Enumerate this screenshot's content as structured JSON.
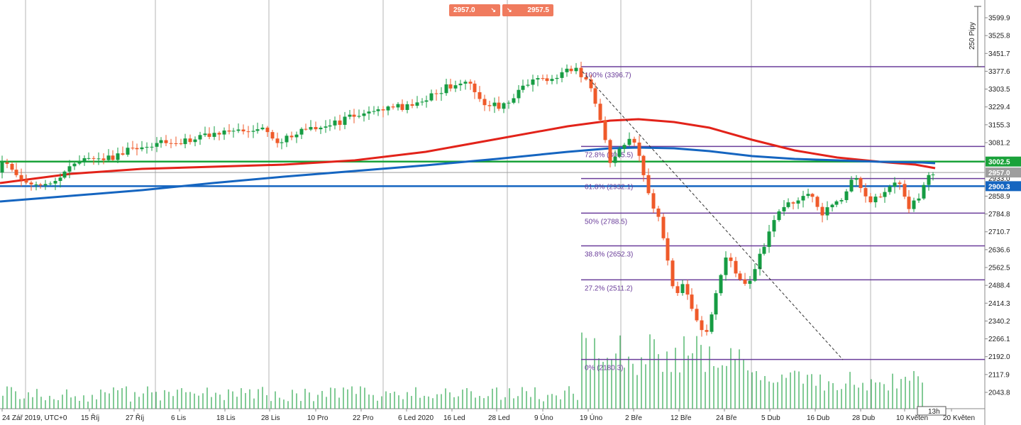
{
  "platform": {
    "bid_price": "2957.0",
    "ask_price": "2957.5",
    "bid_arrow": "↘",
    "ask_arrow": "↘",
    "timer": "13h",
    "range_label": "250 Pipy"
  },
  "colors": {
    "up": "#169c43",
    "down": "#ef5a2a",
    "ma_fast": "#e2231a",
    "ma_slow": "#1565c0",
    "fib": "#6a3d9a",
    "green_line": "#1aa23a",
    "blue_line": "#1565c0",
    "gray_line": "#9e9e9e",
    "volume": "#2fa84f"
  },
  "price_axis": {
    "ticks": [
      "3599.9",
      "3525.8",
      "3451.7",
      "3377.6",
      "3303.5",
      "3229.4",
      "3155.3",
      "3081.2",
      "2858.9",
      "2784.8",
      "2710.7",
      "2636.6",
      "2562.5",
      "2488.4",
      "2414.3",
      "2340.2",
      "2266.1",
      "2192.0",
      "2117.9",
      "2043.8"
    ],
    "tags": [
      {
        "label": "3002.5",
        "value": 3002.5,
        "color": "#1aa23a"
      },
      {
        "label": "2957.0",
        "value": 2957.0,
        "color": "#9e9e9e"
      },
      {
        "label": "2900.3",
        "value": 2900.3,
        "color": "#1565c0"
      }
    ],
    "hidden_tick": "2933.0"
  },
  "time_axis": {
    "labels": [
      "24 Zář 2019, UTC+0",
      "15 Říj",
      "27 Říj",
      "6 Lis",
      "18 Lis",
      "28 Lis",
      "10 Pro",
      "22 Pro",
      "6 Led 2020",
      "16 Led",
      "28 Led",
      "9 Úno",
      "19 Úno",
      "2 Bře",
      "12 Bře",
      "24 Bře",
      "5 Dub",
      "16 Dub",
      "28 Dub",
      "10 Květen",
      "20 Květen"
    ]
  },
  "horizontal_lines": [
    {
      "value": 3002.5,
      "color": "#1aa23a"
    },
    {
      "value": 2957.0,
      "color": "#9e9e9e"
    },
    {
      "value": 2900.3,
      "color": "#1565c0"
    }
  ],
  "fibonacci": {
    "levels": [
      {
        "label": "100% (3396.7)",
        "value": 3396.7
      },
      {
        "label": "72.8% (3065.5)",
        "value": 3065.5
      },
      {
        "label": "61.8% (2932.1)",
        "value": 2932.1
      },
      {
        "label": "50% (2788.5)",
        "value": 2788.5
      },
      {
        "label": "38.8% (2652.3)",
        "value": 2652.3
      },
      {
        "label": "27.2% (2511.2)",
        "value": 2511.2
      },
      {
        "label": "0% (2180.3)",
        "value": 2180.3
      }
    ]
  }
}
